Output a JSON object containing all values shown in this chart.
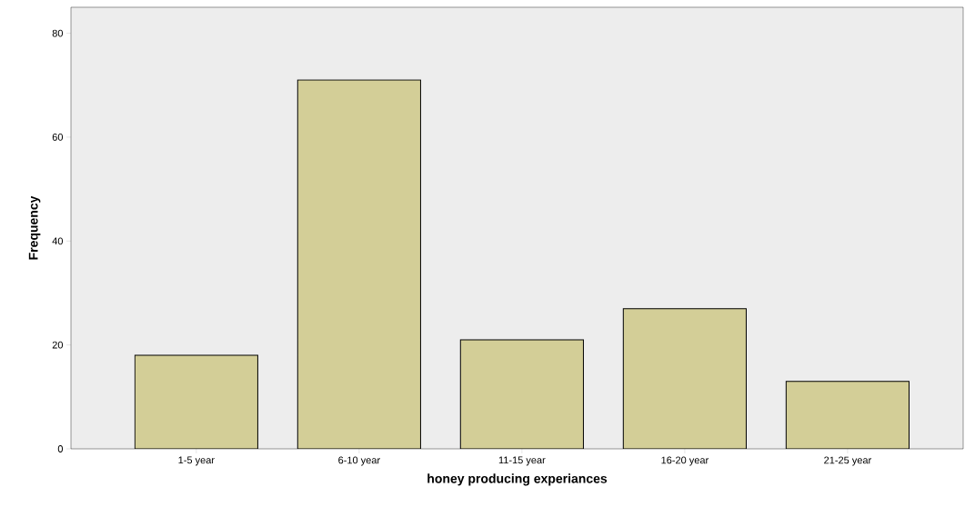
{
  "chart_data": {
    "type": "bar",
    "xlabel": "honey producing experiances",
    "ylabel": "Frequency",
    "categories": [
      "1-5 year",
      "6-10 year",
      "11-15 year",
      "16-20 year",
      "21-25 year"
    ],
    "values": [
      18,
      71,
      21,
      27,
      13
    ],
    "color": "#d3ce97",
    "ylim": [
      0,
      85
    ],
    "yticks": [
      0,
      20,
      40,
      60,
      80
    ],
    "grid": false
  }
}
